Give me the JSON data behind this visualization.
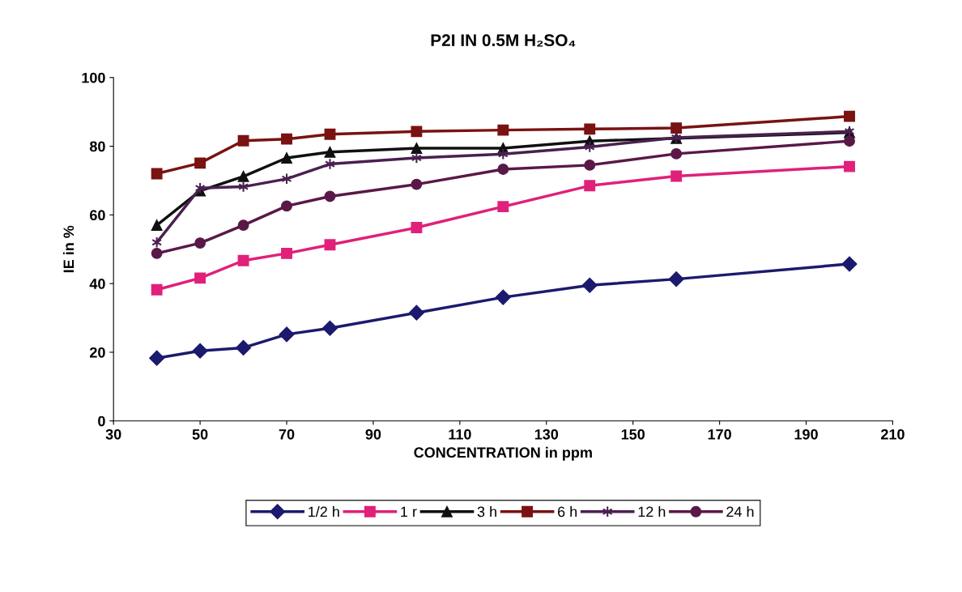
{
  "chart_data": {
    "type": "line",
    "title": "P2I IN 0.5M H₂SO₄",
    "xlabel": "CONCENTRATION in ppm",
    "ylabel": "IE in %",
    "x": [
      40,
      50,
      60,
      70,
      80,
      100,
      120,
      140,
      160,
      200
    ],
    "series": [
      {
        "name": "1/2 h",
        "color": "#1c1a6e",
        "marker": "diamond",
        "values": [
          18.3,
          20.4,
          21.3,
          25.2,
          27,
          31.5,
          36,
          39.5,
          41.3,
          45.7
        ]
      },
      {
        "name": "1 r",
        "color": "#e0207a",
        "marker": "square",
        "values": [
          38.2,
          41.6,
          46.7,
          48.8,
          51.3,
          56.3,
          62.4,
          68.5,
          71.3,
          74.1
        ]
      },
      {
        "name": "3 h",
        "color": "#101010",
        "marker": "triangle",
        "values": [
          57,
          67,
          71.2,
          76.6,
          78.3,
          79.4,
          79.4,
          81.5,
          82.3,
          84
        ]
      },
      {
        "name": "6 h",
        "color": "#7a1212",
        "marker": "square",
        "values": [
          72,
          75.1,
          81.6,
          82.1,
          83.5,
          84.3,
          84.7,
          85,
          85.3,
          88.7
        ]
      },
      {
        "name": "12 h",
        "color": "#4a2050",
        "marker": "cross",
        "values": [
          52,
          67.8,
          68.2,
          70.5,
          74.8,
          76.6,
          77.7,
          79.8,
          82.5,
          84.3
        ]
      },
      {
        "name": "24 h",
        "color": "#5a1848",
        "marker": "circle",
        "values": [
          48.8,
          51.8,
          57,
          62.6,
          65.4,
          68.9,
          73.3,
          74.5,
          77.8,
          81.5
        ]
      }
    ],
    "xlim": [
      30,
      210
    ],
    "xticks": [
      30,
      50,
      70,
      90,
      110,
      130,
      150,
      170,
      190,
      210
    ],
    "ylim": [
      0,
      100
    ],
    "yticks": [
      0,
      20,
      40,
      60,
      80,
      100
    ],
    "grid": false,
    "legend": "bottom",
    "line_style": "solid"
  }
}
